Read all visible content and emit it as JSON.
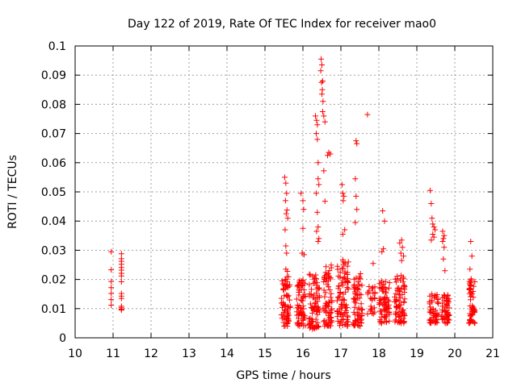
{
  "chart_data": {
    "type": "scatter",
    "title": "Day 122 of 2019, Rate Of TEC Index for receiver mao0",
    "xlabel": "GPS time / hours",
    "ylabel": "ROTI / TECUs",
    "xlim": [
      10,
      21
    ],
    "ylim": [
      0,
      0.1
    ],
    "x_ticks": [
      "10",
      "11",
      "12",
      "13",
      "14",
      "15",
      "16",
      "17",
      "18",
      "19",
      "20",
      "21"
    ],
    "y_ticks": [
      "0",
      "0.01",
      "0.02",
      "0.03",
      "0.04",
      "0.05",
      "0.06",
      "0.07",
      "0.08",
      "0.09",
      "0.1"
    ],
    "grid": true,
    "marker": "+",
    "color": "#ff0000",
    "series": [
      {
        "name": "ROTI",
        "points": [
          [
            10.95,
            0.0295
          ],
          [
            10.95,
            0.0233
          ],
          [
            10.95,
            0.0193
          ],
          [
            10.95,
            0.0172
          ],
          [
            10.95,
            0.0152
          ],
          [
            10.95,
            0.0131
          ],
          [
            10.95,
            0.0112
          ],
          [
            11.22,
            0.0288
          ],
          [
            11.22,
            0.0271
          ],
          [
            11.22,
            0.0262
          ],
          [
            11.22,
            0.0252
          ],
          [
            11.22,
            0.0241
          ],
          [
            11.22,
            0.0232
          ],
          [
            11.22,
            0.0221
          ],
          [
            11.22,
            0.0212
          ],
          [
            11.22,
            0.0192
          ],
          [
            11.22,
            0.0152
          ],
          [
            11.22,
            0.0143
          ],
          [
            11.22,
            0.0135
          ],
          [
            11.22,
            0.0108
          ],
          [
            11.22,
            0.0103
          ],
          [
            11.22,
            0.0098
          ],
          [
            11.22,
            0.0095
          ],
          [
            15.52,
            0.055
          ],
          [
            15.55,
            0.053
          ],
          [
            15.57,
            0.0495
          ],
          [
            15.54,
            0.047
          ],
          [
            15.58,
            0.0438
          ],
          [
            15.56,
            0.0425
          ],
          [
            15.6,
            0.041
          ],
          [
            15.53,
            0.037
          ],
          [
            15.55,
            0.0315
          ],
          [
            15.57,
            0.029
          ],
          [
            15.55,
            0.0235
          ],
          [
            15.59,
            0.0228
          ],
          [
            15.95,
            0.0495
          ],
          [
            16.0,
            0.047
          ],
          [
            16.02,
            0.044
          ],
          [
            16.0,
            0.0375
          ],
          [
            15.98,
            0.029
          ],
          [
            16.03,
            0.0285
          ],
          [
            16.33,
            0.076
          ],
          [
            16.36,
            0.0745
          ],
          [
            16.38,
            0.073
          ],
          [
            16.35,
            0.07
          ],
          [
            16.38,
            0.068
          ],
          [
            16.4,
            0.06
          ],
          [
            16.4,
            0.0545
          ],
          [
            16.42,
            0.0525
          ],
          [
            16.35,
            0.0495
          ],
          [
            16.38,
            0.043
          ],
          [
            16.4,
            0.038
          ],
          [
            16.36,
            0.0365
          ],
          [
            16.42,
            0.034
          ],
          [
            16.4,
            0.033
          ],
          [
            16.48,
            0.0955
          ],
          [
            16.5,
            0.0935
          ],
          [
            16.47,
            0.0915
          ],
          [
            16.52,
            0.088
          ],
          [
            16.49,
            0.0875
          ],
          [
            16.51,
            0.085
          ],
          [
            16.5,
            0.0835
          ],
          [
            16.53,
            0.081
          ],
          [
            16.52,
            0.0775
          ],
          [
            16.55,
            0.076
          ],
          [
            16.58,
            0.074
          ],
          [
            16.55,
            0.0572
          ],
          [
            16.58,
            0.0468
          ],
          [
            16.68,
            0.0635
          ],
          [
            16.72,
            0.063
          ],
          [
            16.65,
            0.0625
          ],
          [
            17.03,
            0.0525
          ],
          [
            17.05,
            0.0495
          ],
          [
            17.08,
            0.0485
          ],
          [
            17.06,
            0.047
          ],
          [
            17.1,
            0.037
          ],
          [
            17.05,
            0.0355
          ],
          [
            17.4,
            0.0675
          ],
          [
            17.42,
            0.0665
          ],
          [
            17.38,
            0.0545
          ],
          [
            17.4,
            0.0485
          ],
          [
            17.42,
            0.044
          ],
          [
            17.38,
            0.0395
          ],
          [
            17.7,
            0.0765
          ],
          [
            17.85,
            0.0255
          ],
          [
            18.1,
            0.0435
          ],
          [
            18.15,
            0.04
          ],
          [
            18.12,
            0.0305
          ],
          [
            18.08,
            0.0295
          ],
          [
            18.55,
            0.0325
          ],
          [
            18.6,
            0.0335
          ],
          [
            18.62,
            0.031
          ],
          [
            18.58,
            0.029
          ],
          [
            18.65,
            0.028
          ],
          [
            18.6,
            0.0265
          ],
          [
            19.35,
            0.0505
          ],
          [
            19.38,
            0.046
          ],
          [
            19.4,
            0.041
          ],
          [
            19.42,
            0.039
          ],
          [
            19.45,
            0.038
          ],
          [
            19.48,
            0.037
          ],
          [
            19.42,
            0.0355
          ],
          [
            19.45,
            0.0345
          ],
          [
            19.38,
            0.0335
          ],
          [
            19.68,
            0.0365
          ],
          [
            19.72,
            0.035
          ],
          [
            19.7,
            0.034
          ],
          [
            19.68,
            0.033
          ],
          [
            19.72,
            0.031
          ],
          [
            19.7,
            0.027
          ],
          [
            19.74,
            0.023
          ],
          [
            20.42,
            0.033
          ],
          [
            20.45,
            0.028
          ],
          [
            20.4,
            0.0235
          ]
        ]
      }
    ],
    "clusters": [
      {
        "x_center": 15.55,
        "x_spread": 0.12,
        "y_min": 0.004,
        "y_max": 0.021,
        "count": 70
      },
      {
        "x_center": 15.95,
        "x_spread": 0.12,
        "y_min": 0.004,
        "y_max": 0.02,
        "count": 70
      },
      {
        "x_center": 16.3,
        "x_spread": 0.14,
        "y_min": 0.003,
        "y_max": 0.022,
        "count": 75
      },
      {
        "x_center": 16.65,
        "x_spread": 0.12,
        "y_min": 0.004,
        "y_max": 0.025,
        "count": 70
      },
      {
        "x_center": 17.05,
        "x_spread": 0.15,
        "y_min": 0.004,
        "y_max": 0.027,
        "count": 90
      },
      {
        "x_center": 17.45,
        "x_spread": 0.12,
        "y_min": 0.004,
        "y_max": 0.023,
        "count": 70
      },
      {
        "x_center": 17.8,
        "x_spread": 0.1,
        "y_min": 0.008,
        "y_max": 0.018,
        "count": 25
      },
      {
        "x_center": 18.15,
        "x_spread": 0.14,
        "y_min": 0.005,
        "y_max": 0.02,
        "count": 70
      },
      {
        "x_center": 18.55,
        "x_spread": 0.14,
        "y_min": 0.005,
        "y_max": 0.022,
        "count": 75
      },
      {
        "x_center": 19.45,
        "x_spread": 0.12,
        "y_min": 0.005,
        "y_max": 0.015,
        "count": 55
      },
      {
        "x_center": 19.75,
        "x_spread": 0.1,
        "y_min": 0.005,
        "y_max": 0.016,
        "count": 55
      },
      {
        "x_center": 20.45,
        "x_spread": 0.08,
        "y_min": 0.005,
        "y_max": 0.022,
        "count": 55
      }
    ]
  }
}
